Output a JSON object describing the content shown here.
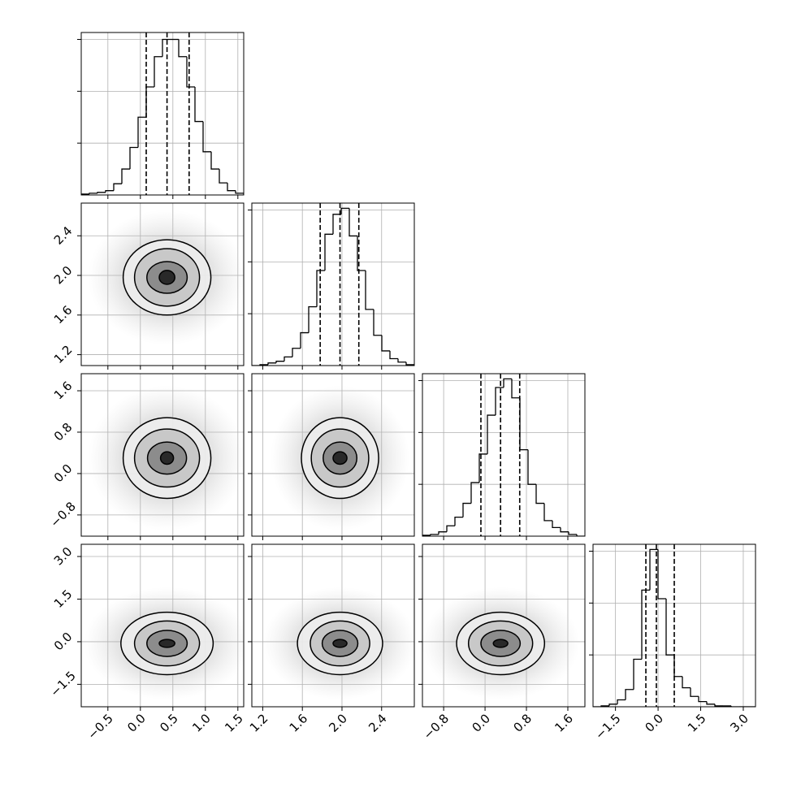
{
  "chart_data": {
    "type": "corner",
    "grid": true,
    "line_color": "#000000",
    "grid_color": "#b0b0b0",
    "parameters": [
      {
        "lim": [
          -0.91,
          1.59
        ],
        "ticks": [
          {
            "value": -0.5,
            "label": "−0.5"
          },
          {
            "value": 0.0,
            "label": "0.0"
          },
          0.5,
          {
            "value": 1.0,
            "label": "1.0"
          },
          1.5
        ],
        "quantiles": [
          0.09,
          0.41,
          0.75
        ],
        "hist": {
          "bins": [
            -0.91,
            -0.785,
            -0.66,
            -0.535,
            -0.41,
            -0.285,
            -0.16,
            -0.035,
            0.09,
            0.215,
            0.34,
            0.465,
            0.59,
            0.715,
            0.84,
            0.965,
            1.09,
            1.215,
            1.34,
            1.465,
            1.59
          ],
          "counts": [
            1,
            2,
            3,
            5,
            13,
            30,
            55,
            90,
            125,
            160,
            180,
            180,
            160,
            125,
            85,
            50,
            30,
            14,
            5,
            2
          ],
          "ylim": [
            0,
            188
          ],
          "yticks": [
            60,
            120,
            180
          ]
        }
      },
      {
        "lim": [
          1.09,
          2.73
        ],
        "ticks": [
          1.2,
          1.6,
          {
            "value": 2.0,
            "label": "2.0"
          },
          2.4
        ],
        "quantiles": [
          1.78,
          1.98,
          2.17
        ],
        "hist": {
          "bins": [
            1.09,
            1.172,
            1.254,
            1.336,
            1.418,
            1.5,
            1.582,
            1.664,
            1.746,
            1.828,
            1.91,
            1.992,
            2.074,
            2.156,
            2.238,
            2.32,
            2.402,
            2.484,
            2.566,
            2.648,
            2.73
          ],
          "counts": [
            0,
            1,
            3,
            5,
            10,
            20,
            38,
            68,
            110,
            152,
            175,
            182,
            150,
            110,
            65,
            35,
            17,
            8,
            4,
            1
          ],
          "ylim": [
            0,
            188
          ],
          "yticks": [
            60,
            120,
            180
          ]
        }
      },
      {
        "lim": [
          -1.21,
          1.93
        ],
        "ticks": [
          {
            "value": -0.8,
            "label": "−0.8"
          },
          {
            "value": 0.0,
            "label": "0.0"
          },
          0.8,
          1.6
        ],
        "quantiles": [
          -0.08,
          0.3,
          0.67
        ],
        "hist": {
          "bins": [
            -1.21,
            -1.053,
            -0.896,
            -0.739,
            -0.582,
            -0.425,
            -0.268,
            -0.111,
            0.046,
            0.203,
            0.36,
            0.517,
            0.674,
            0.831,
            0.988,
            1.145,
            1.302,
            1.459,
            1.616,
            1.773,
            1.93
          ],
          "counts": [
            1,
            2,
            5,
            12,
            22,
            38,
            62,
            95,
            140,
            172,
            182,
            160,
            100,
            60,
            38,
            18,
            10,
            5,
            2,
            0
          ],
          "ylim": [
            0,
            188
          ],
          "yticks": [
            60,
            120,
            180
          ]
        }
      },
      {
        "lim": [
          -2.29,
          3.43
        ],
        "ticks": [
          {
            "value": -1.5,
            "label": "−1.5"
          },
          {
            "value": 0.0,
            "label": "0.0"
          },
          1.5,
          {
            "value": 3.0,
            "label": "3.0"
          }
        ],
        "quantiles": [
          -0.43,
          -0.06,
          0.57
        ],
        "hist": {
          "bins": [
            -2.29,
            -2.004,
            -1.718,
            -1.432,
            -1.146,
            -0.86,
            -0.574,
            -0.288,
            -0.002,
            0.284,
            0.57,
            0.856,
            1.142,
            1.428,
            1.714,
            2.0,
            2.286,
            2.572,
            2.858,
            3.144,
            3.43
          ],
          "counts": [
            0,
            1,
            3,
            8,
            20,
            55,
            135,
            182,
            125,
            60,
            35,
            22,
            12,
            6,
            3,
            1,
            1,
            0,
            0,
            0
          ],
          "ylim": [
            0,
            188
          ],
          "yticks": [
            60,
            120,
            180
          ]
        }
      }
    ],
    "pairs": [
      [],
      [
        {
          "contours": [
            [
              0.675,
              0.38
            ],
            [
              0.5,
              0.29
            ],
            [
              0.31,
              0.16
            ],
            [
              0.12,
              0.07
            ]
          ]
        }
      ],
      [
        {
          "contours": [
            [
              0.675,
              0.78
            ],
            [
              0.5,
              0.56
            ],
            [
              0.3,
              0.31
            ],
            [
              0.1,
              0.12
            ]
          ]
        },
        {
          "contours": [
            [
              0.39,
              0.78
            ],
            [
              0.29,
              0.56
            ],
            [
              0.17,
              0.31
            ],
            [
              0.07,
              0.12
            ]
          ]
        }
      ],
      [
        {
          "contours": [
            [
              0.71,
              1.1
            ],
            [
              0.5,
              0.79
            ],
            [
              0.31,
              0.46
            ],
            [
              0.12,
              0.14
            ]
          ]
        },
        {
          "contours": [
            [
              0.43,
              1.1
            ],
            [
              0.3,
              0.79
            ],
            [
              0.18,
              0.46
            ],
            [
              0.07,
              0.14
            ]
          ]
        },
        {
          "contours": [
            [
              0.85,
              1.1
            ],
            [
              0.62,
              0.79
            ],
            [
              0.38,
              0.46
            ],
            [
              0.14,
              0.14
            ]
          ]
        }
      ]
    ]
  }
}
